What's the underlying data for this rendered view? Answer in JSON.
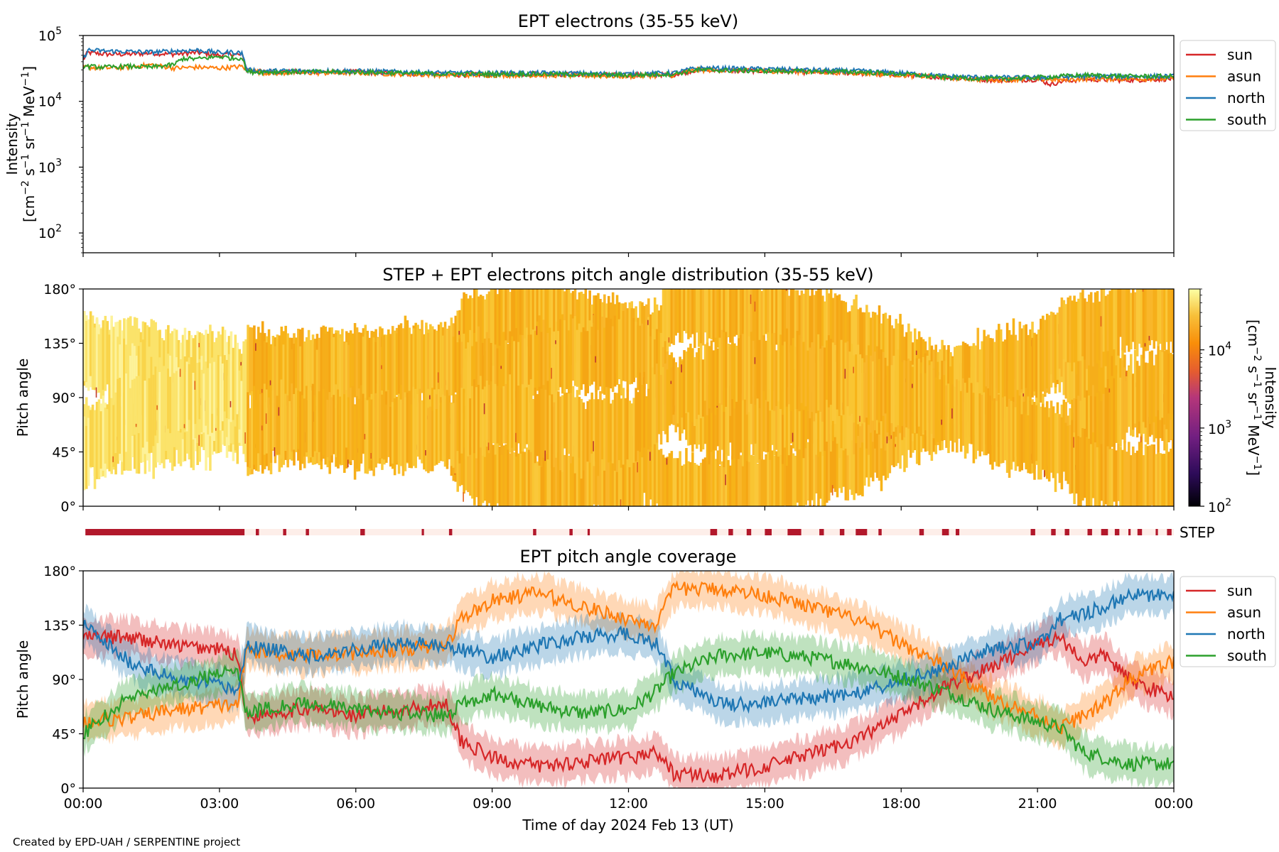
{
  "credit": "Created by EPD-UAH / SERPENTINE project",
  "chart_data": [
    {
      "type": "line",
      "title": "EPT electrons (35-55 keV)",
      "ylabel_line1": "Intensity",
      "ylabel_line2_parts": [
        "[cm",
        "−2",
        " s",
        "−1",
        " sr",
        "−1",
        " MeV",
        "−1",
        "]"
      ],
      "yscale": "log",
      "ylim": [
        50,
        100000
      ],
      "yticks": [
        {
          "base": "10",
          "exp": "2",
          "value": 100
        },
        {
          "base": "10",
          "exp": "3",
          "value": 1000
        },
        {
          "base": "10",
          "exp": "4",
          "value": 10000
        },
        {
          "base": "10",
          "exp": "5",
          "value": 100000
        }
      ],
      "xlim_hours": [
        0,
        24
      ],
      "legend_position": "outside-right-top",
      "series": [
        {
          "name": "sun",
          "color": "#d62728",
          "hours": [
            0,
            0.1,
            0.5,
            1.0,
            1.5,
            2.0,
            2.5,
            3.0,
            3.3,
            3.5,
            3.6,
            4,
            6,
            8,
            10,
            12,
            13,
            13.5,
            15,
            17,
            18,
            19,
            20,
            21,
            21.3,
            21.5,
            22,
            23,
            24
          ],
          "values": [
            42000,
            55000,
            52000,
            52000,
            54000,
            52000,
            55000,
            50000,
            52000,
            50000,
            30000,
            28000,
            28000,
            25000,
            26000,
            25000,
            25500,
            30000,
            29000,
            27000,
            25500,
            23000,
            21000,
            21500,
            18000,
            20000,
            21500,
            21000,
            22000
          ]
        },
        {
          "name": "asun",
          "color": "#ff7f0e",
          "hours": [
            0,
            0.5,
            1.0,
            1.5,
            2.0,
            2.5,
            3.0,
            3.3,
            3.5,
            3.6,
            4,
            6,
            8,
            10,
            12,
            13,
            13.5,
            15,
            17,
            18,
            19,
            20,
            21,
            21.5,
            22,
            23,
            24
          ],
          "values": [
            33000,
            32000,
            33000,
            36000,
            32000,
            33000,
            32000,
            33000,
            34000,
            30000,
            27000,
            27000,
            25000,
            25000,
            24000,
            25000,
            30000,
            29000,
            27000,
            25000,
            23000,
            21000,
            22000,
            21000,
            22000,
            22000,
            22000
          ]
        },
        {
          "name": "north",
          "color": "#1f77b4",
          "hours": [
            0,
            0.1,
            0.5,
            1.0,
            1.5,
            2.0,
            2.5,
            3.0,
            3.3,
            3.5,
            3.6,
            4,
            6,
            8,
            10,
            12,
            13,
            13.5,
            15,
            17,
            18,
            19,
            20,
            21,
            22,
            23,
            24
          ],
          "values": [
            42000,
            60000,
            58000,
            57000,
            56000,
            58000,
            60000,
            55000,
            56000,
            54000,
            30000,
            29000,
            29000,
            27000,
            27000,
            26000,
            27000,
            32000,
            31000,
            29000,
            27000,
            24000,
            23000,
            23000,
            24000,
            24000,
            24000
          ]
        },
        {
          "name": "south",
          "color": "#2ca02c",
          "hours": [
            0,
            0.5,
            1.0,
            1.5,
            2.0,
            2.2,
            2.5,
            3.0,
            3.3,
            3.5,
            3.6,
            4,
            6,
            8,
            10,
            12,
            13,
            13.5,
            15,
            17,
            18,
            19,
            20,
            21,
            22,
            23,
            24
          ],
          "values": [
            34000,
            33000,
            34000,
            33000,
            36000,
            45000,
            44000,
            48000,
            45000,
            46000,
            28000,
            28000,
            28000,
            26000,
            26000,
            25000,
            26000,
            30000,
            29000,
            28000,
            26000,
            23000,
            22000,
            23000,
            25000,
            24000,
            24000
          ]
        }
      ]
    },
    {
      "type": "heatmap",
      "title": "STEP + EPT electrons pitch angle distribution (35-55 keV)",
      "ylabel": "Pitch angle",
      "ylim": [
        0,
        180
      ],
      "yticks": [
        "0°",
        "45°",
        "90°",
        "135°",
        "180°"
      ],
      "xlim_hours": [
        0,
        24
      ],
      "colormap": "inferno",
      "colorbar": {
        "scale": "log",
        "range": [
          100,
          60000
        ],
        "ticks": [
          {
            "base": "10",
            "exp": "2",
            "value": 100
          },
          {
            "base": "10",
            "exp": "3",
            "value": 1000
          },
          {
            "base": "10",
            "exp": "4",
            "value": 10000
          }
        ],
        "label_parts": [
          "Intensity",
          "[cm",
          "−2",
          " s",
          "−1",
          " sr",
          "−1",
          " MeV",
          "−1",
          "]"
        ]
      },
      "intensity_note_hours": [
        0,
        3.6,
        24
      ],
      "intensity_values": [
        40000,
        27000,
        24000
      ]
    },
    {
      "type": "bar",
      "label": "STEP",
      "active_color": "#b2182b",
      "inactive_color": "#fdeee9",
      "xlim_hours": [
        0,
        24
      ],
      "active_intervals_hours": [
        [
          0.05,
          3.55
        ],
        [
          3.8,
          3.87
        ],
        [
          4.4,
          4.47
        ],
        [
          4.9,
          4.97
        ],
        [
          6.1,
          6.2
        ],
        [
          7.45,
          7.5
        ],
        [
          8.05,
          8.12
        ],
        [
          9.9,
          9.97
        ],
        [
          10.7,
          10.77
        ],
        [
          11.1,
          11.15
        ],
        [
          13.8,
          13.95
        ],
        [
          14.2,
          14.3
        ],
        [
          14.6,
          14.7
        ],
        [
          15.0,
          15.15
        ],
        [
          15.5,
          15.8
        ],
        [
          16.2,
          16.3
        ],
        [
          16.65,
          16.75
        ],
        [
          17.0,
          17.25
        ],
        [
          17.5,
          17.57
        ],
        [
          18.4,
          18.5
        ],
        [
          18.9,
          19.05
        ],
        [
          19.2,
          19.28
        ],
        [
          20.85,
          20.95
        ],
        [
          21.3,
          21.4
        ],
        [
          21.6,
          21.7
        ],
        [
          22.1,
          22.2
        ],
        [
          22.4,
          22.55
        ],
        [
          22.7,
          22.8
        ],
        [
          23.0,
          23.05
        ],
        [
          23.2,
          23.3
        ],
        [
          23.6,
          23.65
        ],
        [
          23.85,
          23.95
        ]
      ]
    },
    {
      "type": "line",
      "title": "EPT pitch angle coverage",
      "ylabel": "Pitch angle",
      "ylim": [
        0,
        180
      ],
      "yticks": [
        "0°",
        "45°",
        "90°",
        "135°",
        "180°"
      ],
      "xlabel": "Time of day 2024 Feb 13 (UT)",
      "xticks": [
        "00:00",
        "03:00",
        "06:00",
        "09:00",
        "12:00",
        "15:00",
        "18:00",
        "21:00",
        "00:00"
      ],
      "xlim_hours": [
        0,
        24
      ],
      "legend_position": "outside-right-top",
      "band_halfwidth_deg": 15,
      "series": [
        {
          "name": "sun",
          "color": "#d62728",
          "hours": [
            0,
            1,
            2,
            3,
            3.4,
            3.6,
            4,
            5,
            6,
            7,
            8,
            8.3,
            9,
            10,
            11,
            12,
            12.6,
            13,
            14,
            15,
            16,
            17,
            18,
            19,
            20,
            21,
            21.5,
            22,
            22.5,
            23,
            24
          ],
          "values": [
            125,
            125,
            118,
            115,
            110,
            58,
            62,
            66,
            60,
            65,
            70,
            40,
            25,
            18,
            22,
            25,
            30,
            12,
            10,
            18,
            28,
            40,
            60,
            85,
            100,
            120,
            125,
            105,
            110,
            90,
            75
          ]
        },
        {
          "name": "asun",
          "color": "#ff7f0e",
          "hours": [
            0,
            1,
            2,
            3,
            3.4,
            3.6,
            4,
            5,
            6,
            7,
            8,
            8.3,
            9,
            10,
            11,
            12,
            12.6,
            13,
            14,
            15,
            16,
            17,
            18,
            19,
            20,
            21,
            21.5,
            22,
            22.5,
            23,
            24
          ],
          "values": [
            55,
            58,
            65,
            68,
            70,
            115,
            112,
            110,
            112,
            115,
            118,
            140,
            155,
            162,
            150,
            140,
            135,
            165,
            165,
            160,
            150,
            140,
            120,
            100,
            75,
            60,
            50,
            60,
            70,
            90,
            105
          ]
        },
        {
          "name": "north",
          "color": "#1f77b4",
          "hours": [
            0,
            1,
            2,
            3,
            3.4,
            3.6,
            4,
            5,
            6,
            7,
            8,
            8.3,
            9,
            10,
            11,
            12,
            12.6,
            13,
            14,
            15,
            16,
            17,
            18,
            19,
            20,
            21,
            21.5,
            22,
            22.5,
            23,
            24
          ],
          "values": [
            135,
            105,
            90,
            85,
            80,
            118,
            115,
            110,
            115,
            120,
            118,
            115,
            108,
            118,
            125,
            128,
            120,
            90,
            70,
            70,
            75,
            78,
            88,
            100,
            115,
            120,
            140,
            145,
            150,
            160,
            160
          ]
        },
        {
          "name": "south",
          "color": "#2ca02c",
          "hours": [
            0,
            1,
            2,
            3,
            3.4,
            3.6,
            4,
            5,
            6,
            7,
            8,
            8.3,
            9,
            10,
            11,
            12,
            12.6,
            13,
            14,
            15,
            16,
            17,
            18,
            19,
            20,
            21,
            21.5,
            22,
            22.5,
            23,
            24
          ],
          "values": [
            45,
            75,
            85,
            95,
            100,
            62,
            66,
            70,
            65,
            62,
            60,
            70,
            78,
            68,
            62,
            65,
            80,
            95,
            110,
            112,
            108,
            102,
            92,
            80,
            65,
            55,
            50,
            30,
            25,
            20,
            20
          ]
        }
      ]
    }
  ]
}
